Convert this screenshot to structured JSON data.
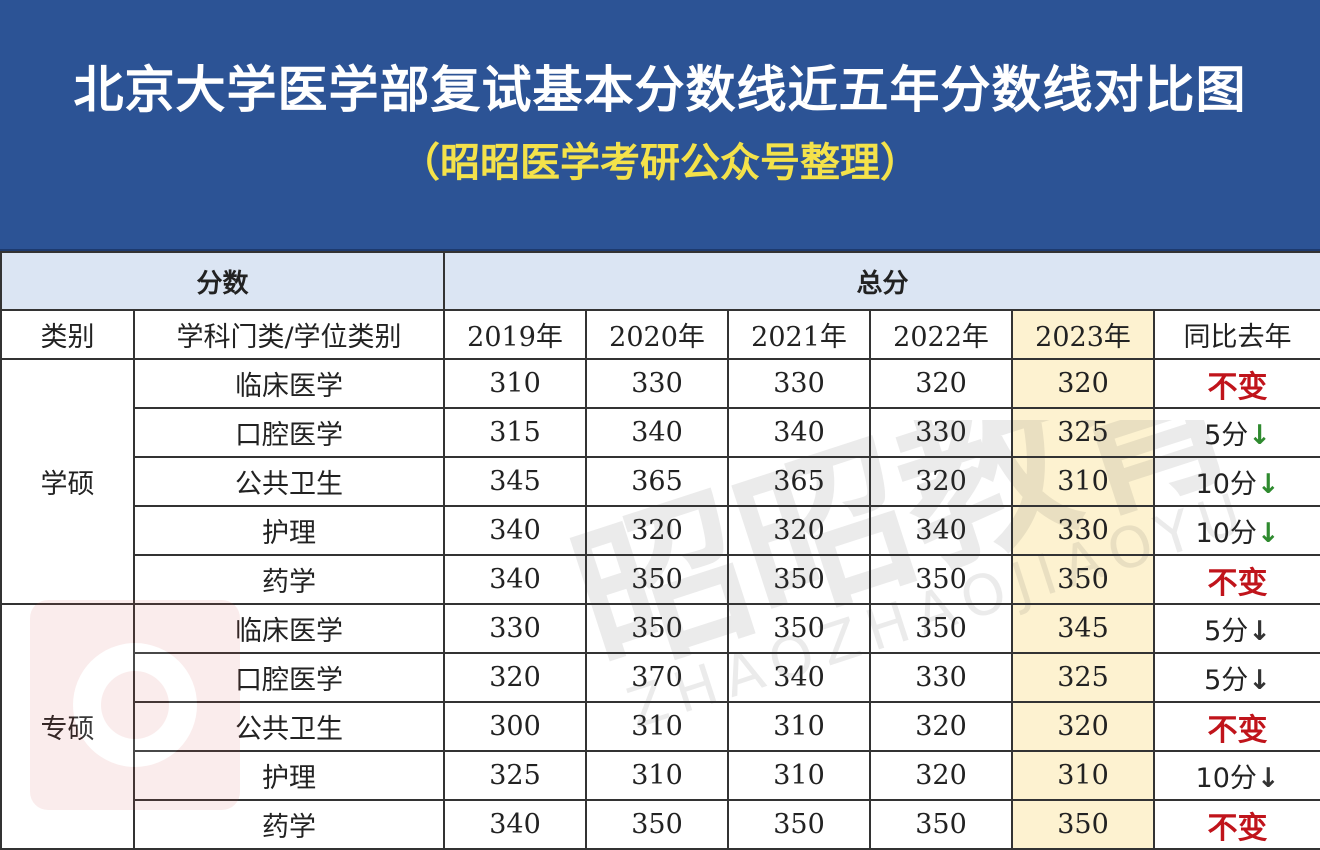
{
  "title": "北京大学医学部复试基本分数线近五年分数线对比图",
  "subtitle": "（昭昭医学考研公众号整理）",
  "header": {
    "score_group": "分数",
    "total_group": "总分"
  },
  "columns": {
    "category": "类别",
    "subject": "学科门类/学位类别",
    "years": [
      "2019年",
      "2020年",
      "2021年",
      "2022年",
      "2023年"
    ],
    "change": "同比去年"
  },
  "groups": [
    {
      "category": "学硕",
      "rows": [
        {
          "subject": "临床医学",
          "scores": [
            "310",
            "330",
            "330",
            "320",
            "320"
          ],
          "change_text": "不变",
          "change_arrow": ""
        },
        {
          "subject": "口腔医学",
          "scores": [
            "315",
            "340",
            "340",
            "330",
            "325"
          ],
          "change_text": "5分",
          "change_arrow": "↓"
        },
        {
          "subject": "公共卫生",
          "scores": [
            "345",
            "365",
            "365",
            "320",
            "310"
          ],
          "change_text": "10分",
          "change_arrow": "↓"
        },
        {
          "subject": "护理",
          "scores": [
            "340",
            "320",
            "320",
            "340",
            "330"
          ],
          "change_text": "10分",
          "change_arrow": "↓"
        },
        {
          "subject": "药学",
          "scores": [
            "340",
            "350",
            "350",
            "350",
            "350"
          ],
          "change_text": "不变",
          "change_arrow": ""
        }
      ]
    },
    {
      "category": "专硕",
      "rows": [
        {
          "subject": "临床医学",
          "scores": [
            "330",
            "350",
            "350",
            "350",
            "345"
          ],
          "change_text": "5分",
          "change_arrow": "↓"
        },
        {
          "subject": "口腔医学",
          "scores": [
            "320",
            "370",
            "340",
            "330",
            "325"
          ],
          "change_text": "5分",
          "change_arrow": "↓"
        },
        {
          "subject": "公共卫生",
          "scores": [
            "300",
            "310",
            "310",
            "320",
            "320"
          ],
          "change_text": "不变",
          "change_arrow": ""
        },
        {
          "subject": "护理",
          "scores": [
            "325",
            "310",
            "310",
            "320",
            "310"
          ],
          "change_text": "10分",
          "change_arrow": "↓"
        },
        {
          "subject": "药学",
          "scores": [
            "340",
            "350",
            "350",
            "350",
            "350"
          ],
          "change_text": "不变",
          "change_arrow": ""
        }
      ]
    }
  ],
  "watermark": {
    "brand": "昭昭教育",
    "pinyin": "ZHAOZHAOJIAOYU"
  },
  "colors": {
    "banner": "#2c5395",
    "title": "#ffffff",
    "subtitle": "#f4e24a",
    "header_fill": "#dbe5f3",
    "highlight_2023": "#fdf2d0",
    "no_change": "#c0141b",
    "decrease_arrow_xueshuo": "#2f8a2f",
    "decrease_arrow_zhuanshuo": "#333333",
    "watermark_logo": "#d9534f"
  }
}
